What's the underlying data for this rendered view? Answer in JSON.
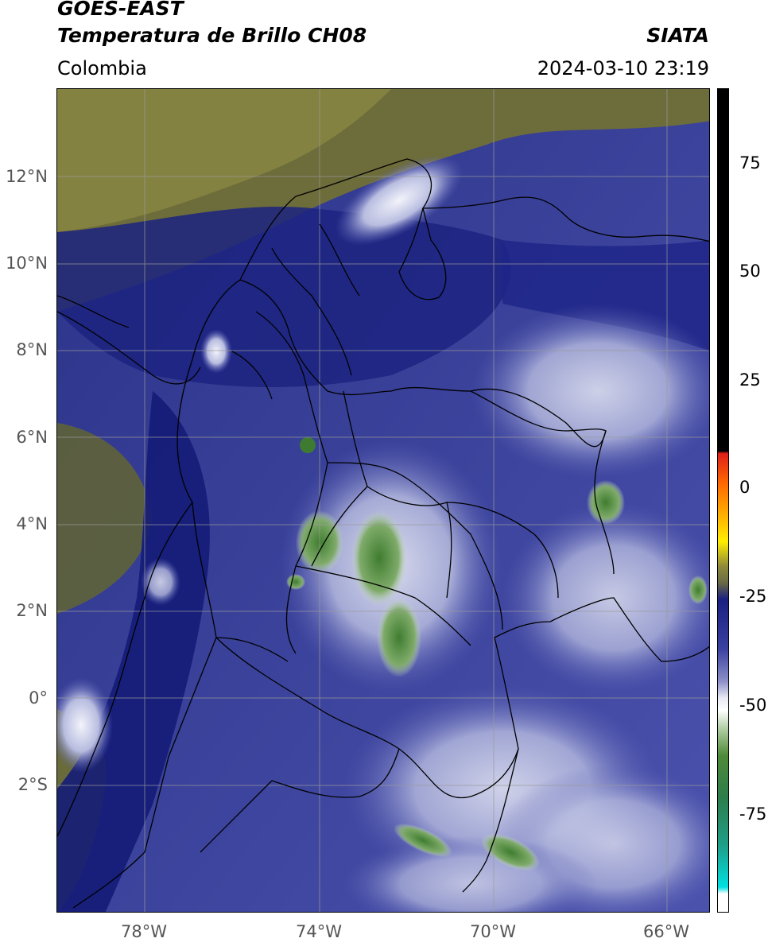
{
  "header": {
    "source": "GOES-EAST",
    "product": "Temperatura de Brillo CH08",
    "agency": "SIATA",
    "region": "Colombia",
    "datetime": "2024-03-10 23:19"
  },
  "map": {
    "lat_labels": [
      "12°N",
      "10°N",
      "8°N",
      "6°N",
      "4°N",
      "2°N",
      "0°",
      "2°S"
    ],
    "lon_labels": [
      "78°W",
      "74°W",
      "70°W",
      "66°W"
    ],
    "colors": {
      "background_olive": "#6b6b3a",
      "ocean_dark_blue": "#1a2580",
      "land_blue": "#4a4fae",
      "cloud_white": "#e6e8f4",
      "cold_cloud_green": "#4f8a3a",
      "grid": "#9a9a9a",
      "border": "#000000"
    }
  },
  "colorbar": {
    "ticks": [
      "75",
      "50",
      "25",
      "0",
      "-25",
      "-50",
      "-75"
    ]
  }
}
